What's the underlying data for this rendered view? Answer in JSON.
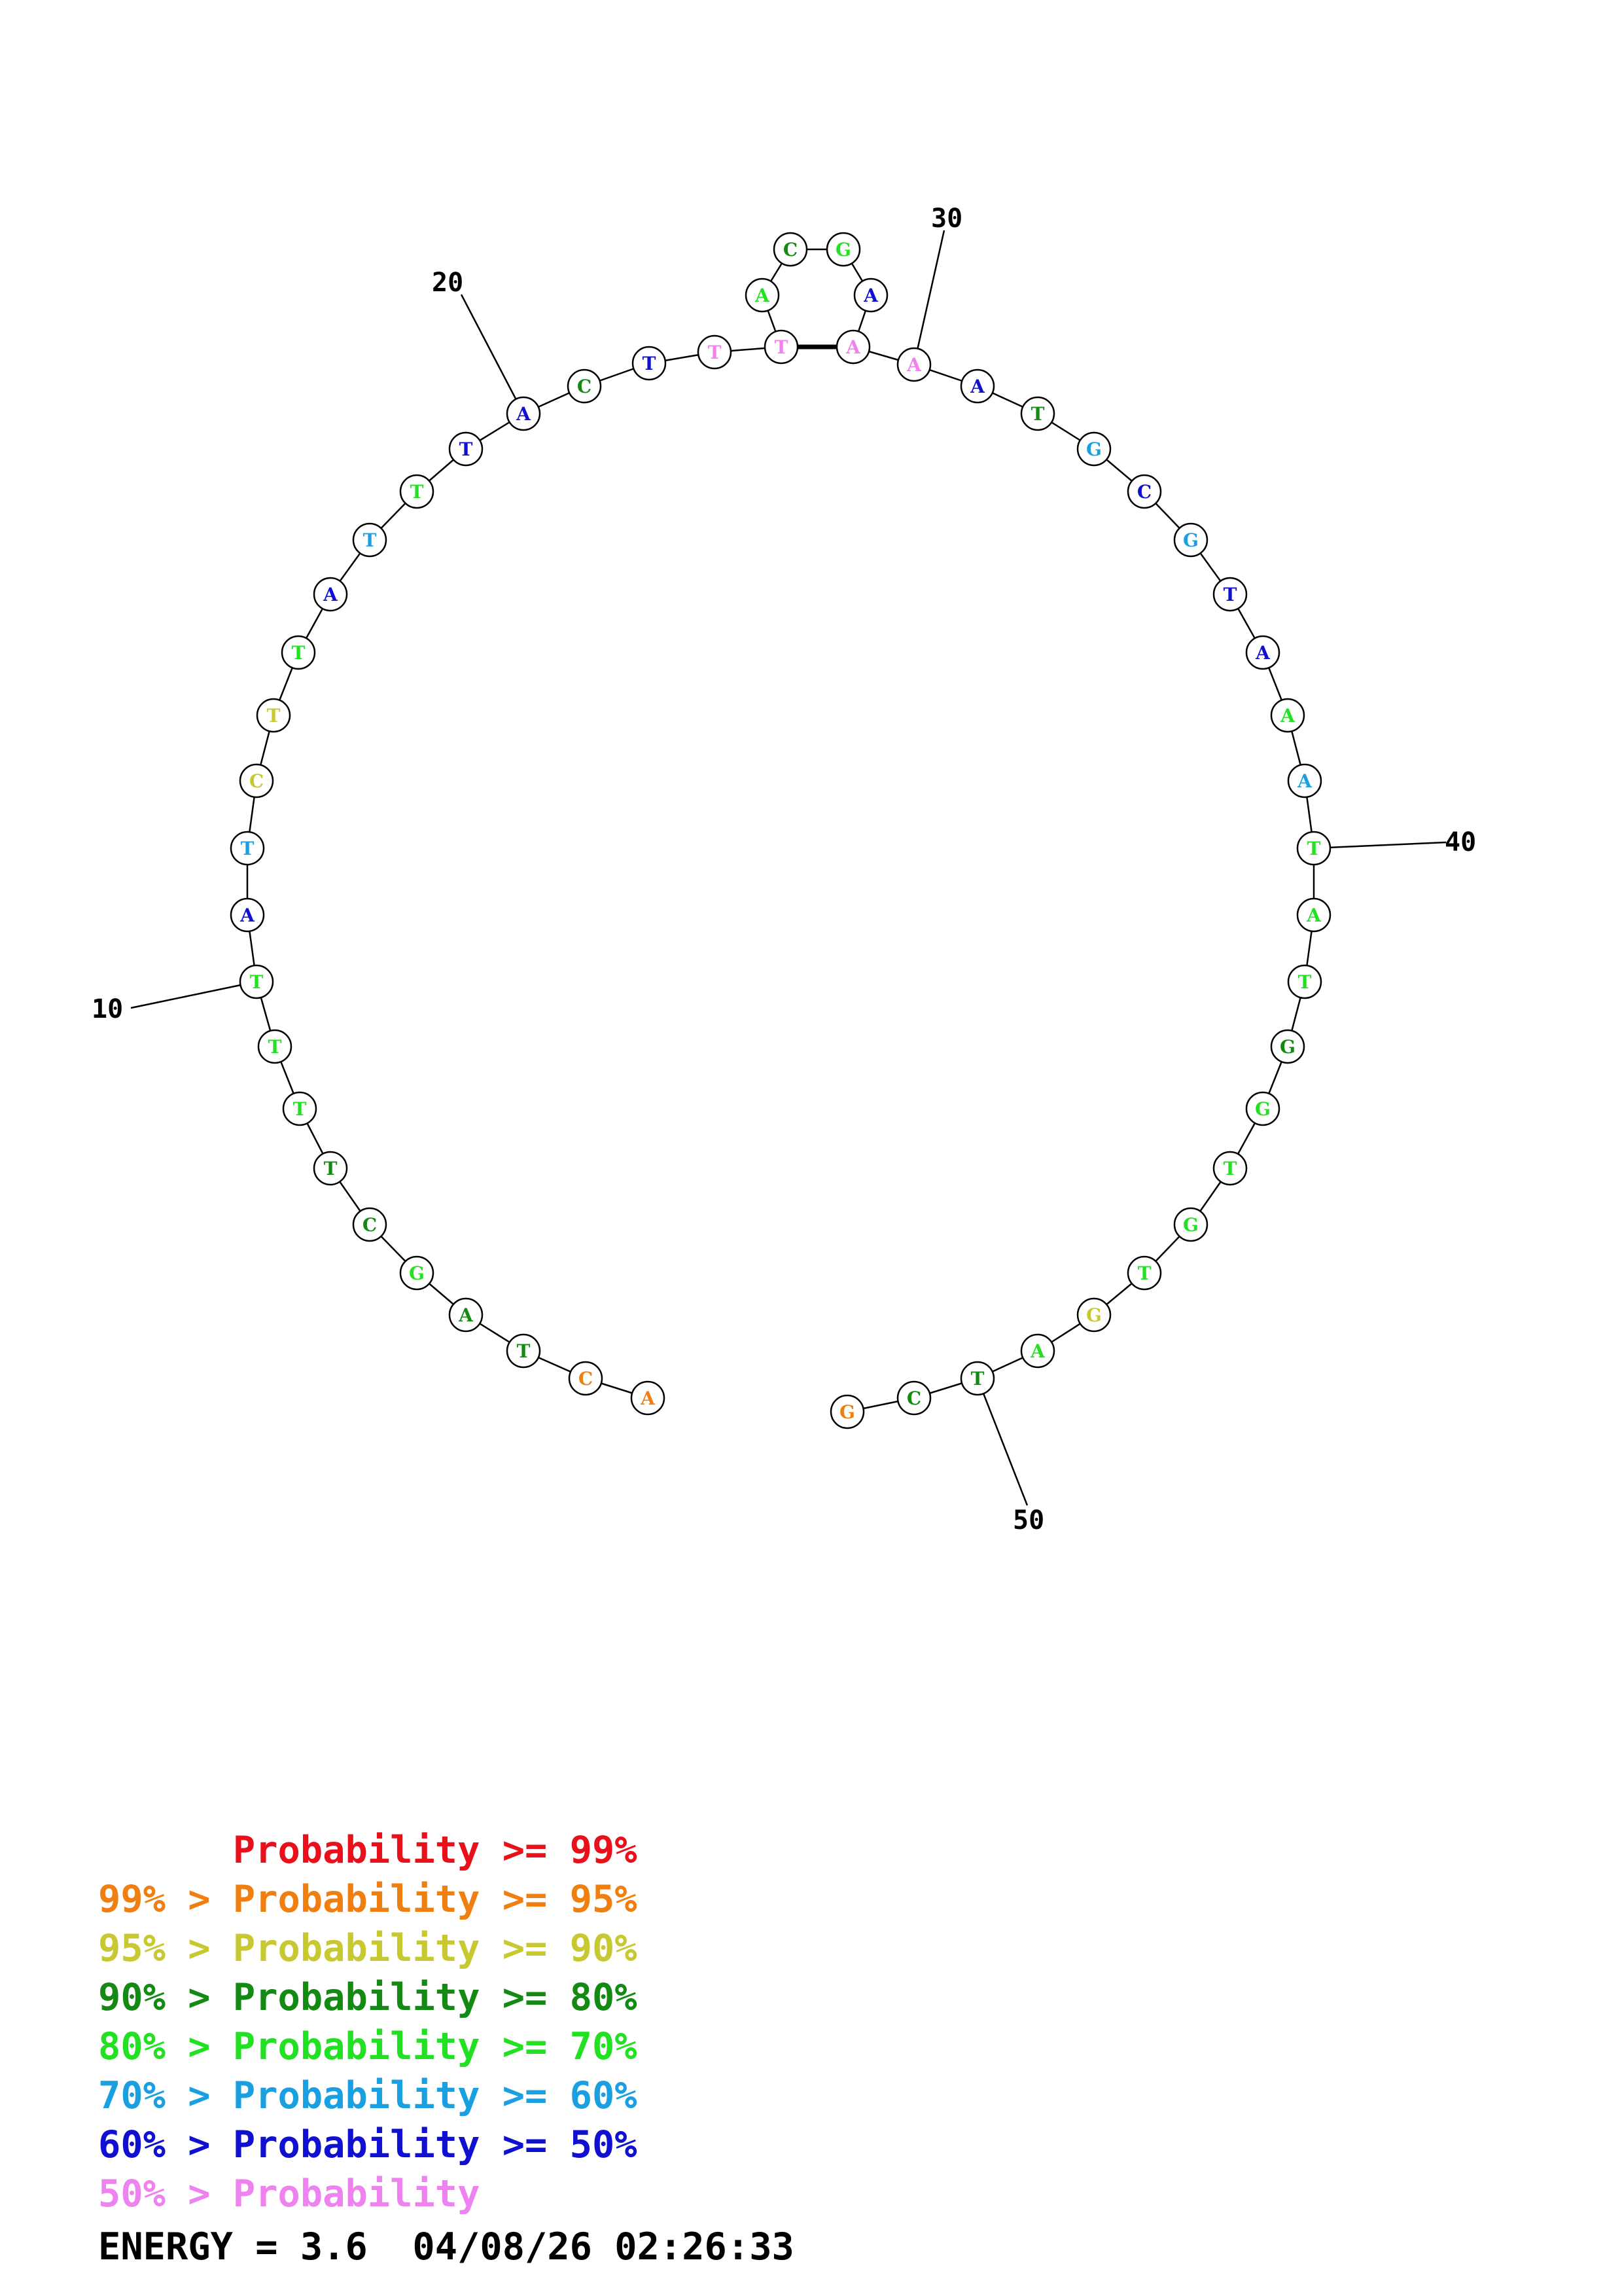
{
  "colors": {
    "red": "#e8101a",
    "orange": "#f07f12",
    "yellow": "#c8c830",
    "darkgreen": "#148a14",
    "green": "#22e022",
    "cyan": "#1aa0e0",
    "blue": "#1010d0",
    "pink": "#ee82ee"
  },
  "nucleotides": [
    {
      "n": 1,
      "base": "A",
      "color": "orange"
    },
    {
      "n": 2,
      "base": "C",
      "color": "orange"
    },
    {
      "n": 3,
      "base": "T",
      "color": "darkgreen"
    },
    {
      "n": 4,
      "base": "A",
      "color": "darkgreen"
    },
    {
      "n": 5,
      "base": "G",
      "color": "green"
    },
    {
      "n": 6,
      "base": "C",
      "color": "darkgreen"
    },
    {
      "n": 7,
      "base": "T",
      "color": "darkgreen"
    },
    {
      "n": 8,
      "base": "T",
      "color": "green"
    },
    {
      "n": 9,
      "base": "T",
      "color": "green"
    },
    {
      "n": 10,
      "base": "T",
      "color": "green"
    },
    {
      "n": 11,
      "base": "A",
      "color": "blue"
    },
    {
      "n": 12,
      "base": "T",
      "color": "cyan"
    },
    {
      "n": 13,
      "base": "C",
      "color": "yellow"
    },
    {
      "n": 14,
      "base": "T",
      "color": "yellow"
    },
    {
      "n": 15,
      "base": "T",
      "color": "green"
    },
    {
      "n": 16,
      "base": "A",
      "color": "blue"
    },
    {
      "n": 17,
      "base": "T",
      "color": "cyan"
    },
    {
      "n": 18,
      "base": "T",
      "color": "green"
    },
    {
      "n": 19,
      "base": "T",
      "color": "blue"
    },
    {
      "n": 20,
      "base": "A",
      "color": "blue"
    },
    {
      "n": 21,
      "base": "C",
      "color": "darkgreen"
    },
    {
      "n": 22,
      "base": "T",
      "color": "blue"
    },
    {
      "n": 23,
      "base": "T",
      "color": "pink"
    },
    {
      "n": 24,
      "base": "T",
      "color": "pink"
    },
    {
      "n": 25,
      "base": "A",
      "color": "green"
    },
    {
      "n": 26,
      "base": "C",
      "color": "darkgreen"
    },
    {
      "n": 27,
      "base": "G",
      "color": "green"
    },
    {
      "n": 28,
      "base": "A",
      "color": "blue"
    },
    {
      "n": 29,
      "base": "A",
      "color": "pink"
    },
    {
      "n": 30,
      "base": "A",
      "color": "pink"
    },
    {
      "n": 31,
      "base": "A",
      "color": "blue"
    },
    {
      "n": 32,
      "base": "T",
      "color": "darkgreen"
    },
    {
      "n": 33,
      "base": "G",
      "color": "cyan"
    },
    {
      "n": 34,
      "base": "C",
      "color": "blue"
    },
    {
      "n": 35,
      "base": "G",
      "color": "cyan"
    },
    {
      "n": 36,
      "base": "T",
      "color": "blue"
    },
    {
      "n": 37,
      "base": "A",
      "color": "blue"
    },
    {
      "n": 38,
      "base": "A",
      "color": "green"
    },
    {
      "n": 39,
      "base": "A",
      "color": "cyan"
    },
    {
      "n": 40,
      "base": "T",
      "color": "green"
    },
    {
      "n": 41,
      "base": "A",
      "color": "green"
    },
    {
      "n": 42,
      "base": "T",
      "color": "green"
    },
    {
      "n": 43,
      "base": "G",
      "color": "darkgreen"
    },
    {
      "n": 44,
      "base": "G",
      "color": "green"
    },
    {
      "n": 45,
      "base": "T",
      "color": "green"
    },
    {
      "n": 46,
      "base": "G",
      "color": "green"
    },
    {
      "n": 47,
      "base": "T",
      "color": "green"
    },
    {
      "n": 48,
      "base": "G",
      "color": "yellow"
    },
    {
      "n": 49,
      "base": "A",
      "color": "green"
    },
    {
      "n": 50,
      "base": "T",
      "color": "darkgreen"
    },
    {
      "n": 51,
      "base": "C",
      "color": "darkgreen"
    },
    {
      "n": 52,
      "base": "G",
      "color": "orange"
    }
  ],
  "base_pairs": [
    [
      24,
      29
    ]
  ],
  "tick_labels": [
    {
      "n": 10,
      "text": "10"
    },
    {
      "n": 20,
      "text": "20"
    },
    {
      "n": 30,
      "text": "30"
    },
    {
      "n": 40,
      "text": "40"
    },
    {
      "n": 50,
      "text": "50"
    }
  ],
  "legend": [
    {
      "prefix": "    ",
      "label": "Probability >= 99%",
      "color": "red"
    },
    {
      "prefix": "99% > ",
      "label": "Probability >= 95%",
      "color": "orange"
    },
    {
      "prefix": "95% > ",
      "label": "Probability >= 90%",
      "color": "yellow"
    },
    {
      "prefix": "90% > ",
      "label": "Probability >= 80%",
      "color": "darkgreen"
    },
    {
      "prefix": "80% > ",
      "label": "Probability >= 70%",
      "color": "green"
    },
    {
      "prefix": "70% > ",
      "label": "Probability >= 60%",
      "color": "cyan"
    },
    {
      "prefix": "60% > ",
      "label": "Probability >= 50%",
      "color": "blue"
    },
    {
      "prefix": "50% > ",
      "label": "Probability",
      "color": "pink"
    }
  ],
  "energy": {
    "text": "ENERGY = 3.6  04/08/26 02:26:33"
  }
}
